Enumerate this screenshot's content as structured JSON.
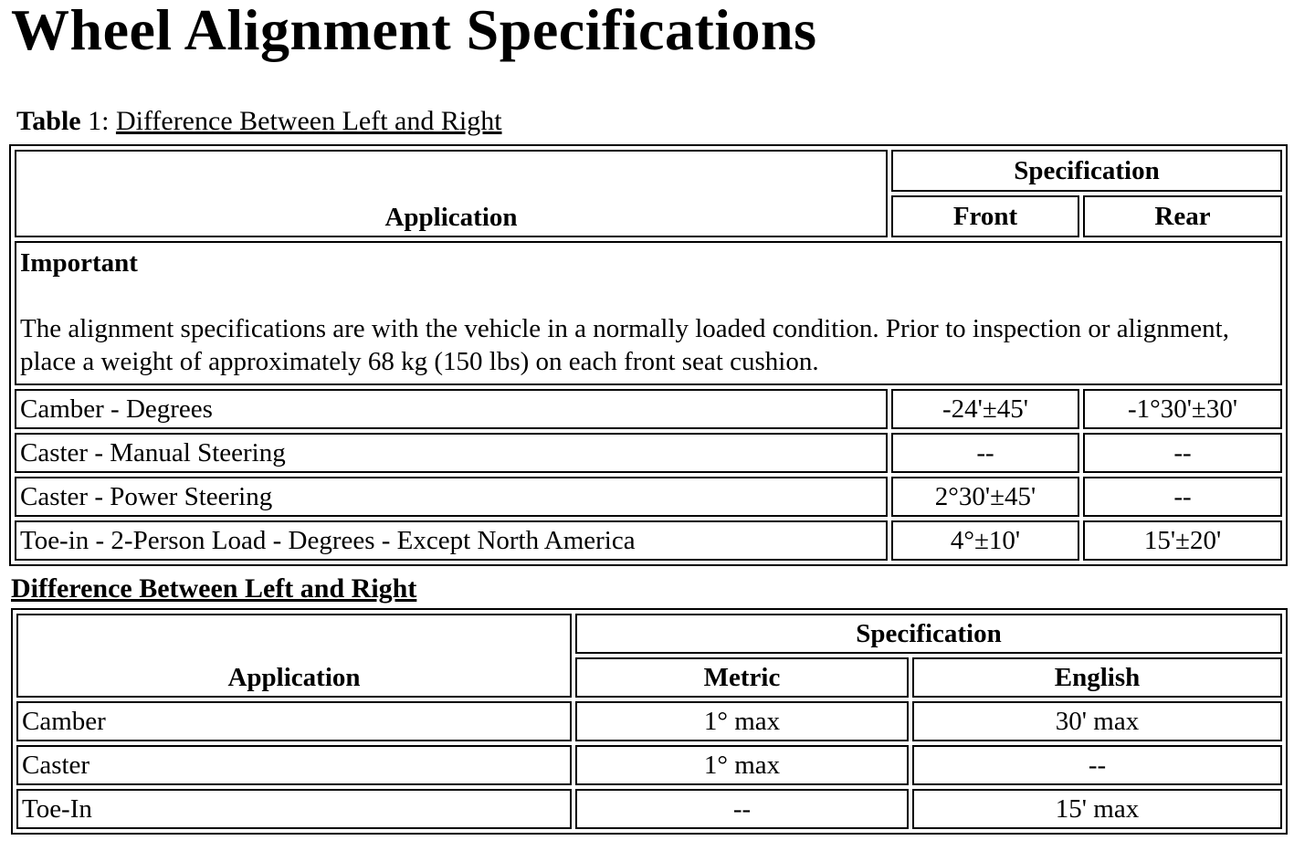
{
  "title": "Wheel Alignment Specifications",
  "table1": {
    "caption_label": "Table",
    "caption_number": "1:",
    "caption_text": "Difference Between Left and Right",
    "headers": {
      "application": "Application",
      "specification": "Specification",
      "front": "Front",
      "rear": "Rear"
    },
    "important_title": "Important",
    "important_text": "The alignment specifications are with the vehicle in a normally loaded condition. Prior to inspection or alignment, place a weight of approximately 68 kg (150 lbs) on each front seat cushion.",
    "rows": [
      {
        "application": "Camber - Degrees",
        "front": "-24'±45'",
        "rear": "-1°30'±30'"
      },
      {
        "application": "Caster - Manual Steering",
        "front": "--",
        "rear": "--"
      },
      {
        "application": "Caster - Power Steering",
        "front": "2°30'±45'",
        "rear": "--"
      },
      {
        "application": "Toe-in - 2-Person Load - Degrees - Except North America",
        "front": "4°±10'",
        "rear": "15'±20'"
      }
    ]
  },
  "table2": {
    "caption": "Difference Between Left and Right",
    "headers": {
      "application": "Application",
      "specification": "Specification",
      "metric": "Metric",
      "english": "English"
    },
    "rows": [
      {
        "application": "Camber",
        "metric": "1° max",
        "english": "30' max"
      },
      {
        "application": "Caster",
        "metric": "1° max",
        "english": "--"
      },
      {
        "application": "Toe-In",
        "metric": "--",
        "english": "15' max"
      }
    ]
  }
}
